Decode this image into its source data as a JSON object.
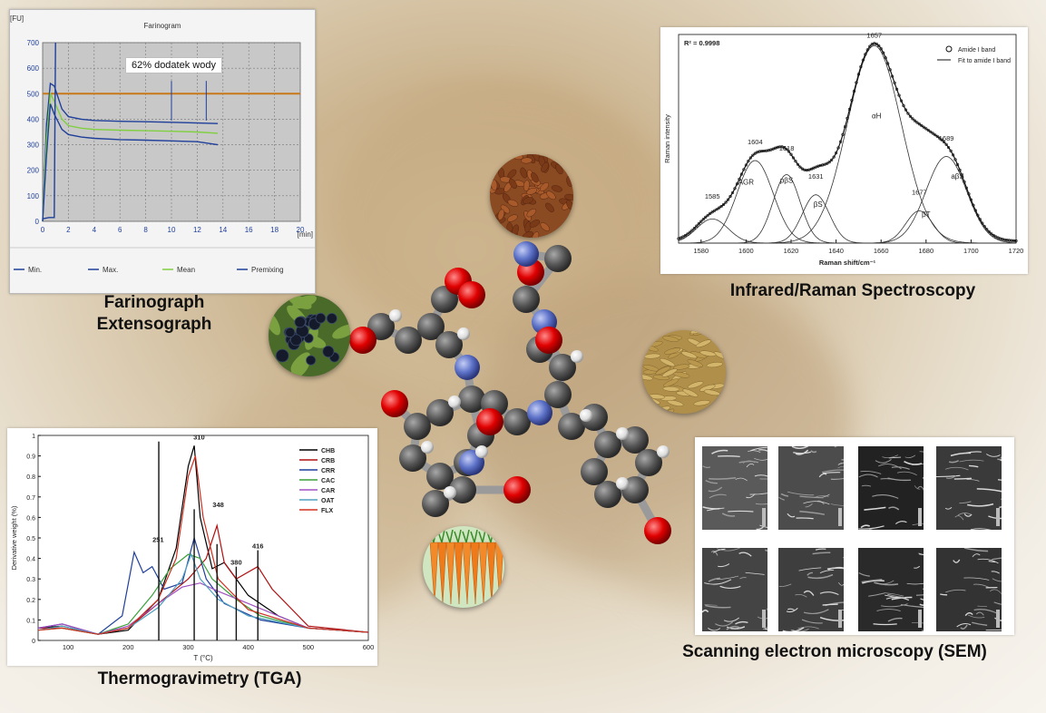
{
  "colors": {
    "background": "#d6c39f",
    "farino_plot": "#c8c8c8",
    "line_blue": "#1f3f9a",
    "line_green": "#7fcf3f",
    "line_orange": "#c87818"
  },
  "farinograph": {
    "title": "Farinogram",
    "y_unit": "[FU]",
    "x_unit": "[min]",
    "annotation": "62% dodatek wody",
    "legend": [
      "Min.",
      "Max.",
      "Mean",
      "Premixing"
    ],
    "caption_line1": "Farinograph",
    "caption_line2": "Extensograph"
  },
  "raman": {
    "r_squared": "R² = 0.9998",
    "legend": [
      "Amide I band",
      "Fit to amide I band"
    ],
    "ylabel": "Raman intensity",
    "xlabel": "Raman shift/cm⁻¹",
    "peaks": [
      "1585",
      "1604",
      "1618",
      "1631",
      "1657",
      "1677",
      "1689"
    ],
    "band_labels": [
      "AGR",
      "pβS",
      "βS",
      "αH",
      "βT",
      "aβS"
    ],
    "caption": "Infrared/Raman Spectroscopy"
  },
  "tga": {
    "ylabel": "Derivative weight (%)",
    "xlabel": "T (°C)",
    "peak_labels": [
      "310",
      "348",
      "251",
      "380",
      "416"
    ],
    "legend": [
      "CHB",
      "CRB",
      "CRR",
      "CAC",
      "CAR",
      "OAT",
      "FLX"
    ],
    "caption": "Thermogravimetry (TGA)"
  },
  "sem": {
    "caption": "Scanning electron microscopy (SEM)"
  },
  "chart_data": [
    {
      "type": "line",
      "title": "Farinogram",
      "xlabel": "[min]",
      "ylabel": "[FU]",
      "xlim": [
        0,
        20
      ],
      "ylim": [
        0,
        700
      ],
      "x_ticks": [
        0,
        2,
        4,
        6,
        8,
        10,
        12,
        14,
        16,
        18,
        20
      ],
      "y_ticks": [
        0,
        100,
        200,
        300,
        400,
        500,
        600,
        700
      ],
      "grid": true,
      "legend_position": "bottom",
      "series": [
        {
          "name": "Max.",
          "x": [
            0,
            0.3,
            0.6,
            0.9,
            1.5,
            2,
            3,
            4,
            6,
            8,
            10,
            12,
            13.6
          ],
          "values": [
            0,
            380,
            540,
            530,
            440,
            410,
            400,
            395,
            392,
            390,
            388,
            385,
            383
          ]
        },
        {
          "name": "Mean",
          "x": [
            0,
            0.3,
            0.6,
            0.9,
            1.5,
            2,
            3,
            4,
            6,
            8,
            10,
            12,
            13.6
          ],
          "values": [
            0,
            320,
            500,
            470,
            400,
            375,
            365,
            360,
            357,
            355,
            353,
            350,
            345
          ]
        },
        {
          "name": "Min.",
          "x": [
            0,
            0.3,
            0.6,
            0.9,
            1.5,
            2,
            3,
            4,
            6,
            8,
            10,
            12,
            13.6
          ],
          "values": [
            0,
            260,
            460,
            420,
            360,
            340,
            330,
            325,
            320,
            318,
            315,
            312,
            300
          ]
        },
        {
          "name": "Premixing",
          "x": [
            0,
            0.5,
            0.9,
            1.0
          ],
          "values": [
            10,
            15,
            15,
            700
          ]
        }
      ],
      "reference_line": 500
    },
    {
      "type": "line",
      "xlabel": "Raman shift/cm⁻¹",
      "ylabel": "Raman intensity",
      "xlim": [
        1570,
        1720
      ],
      "x_ticks": [
        1580,
        1600,
        1620,
        1640,
        1660,
        1680,
        1700,
        1720
      ],
      "legend_position": "top-right",
      "bands": [
        {
          "center": 1585,
          "height": 0.12,
          "width": 7,
          "label": ""
        },
        {
          "center": 1604,
          "height": 0.41,
          "width": 8,
          "label": "AGR"
        },
        {
          "center": 1618,
          "height": 0.34,
          "width": 6,
          "label": "pβS"
        },
        {
          "center": 1631,
          "height": 0.24,
          "width": 6,
          "label": "βS"
        },
        {
          "center": 1657,
          "height": 0.98,
          "width": 12,
          "label": "αH"
        },
        {
          "center": 1677,
          "height": 0.16,
          "width": 6,
          "label": "βT"
        },
        {
          "center": 1689,
          "height": 0.43,
          "width": 9,
          "label": "aβS"
        }
      ]
    },
    {
      "type": "line",
      "xlabel": "T (°C)",
      "ylabel": "Derivative weight (%)",
      "xlim": [
        50,
        600
      ],
      "ylim": [
        0,
        1
      ],
      "x_ticks": [
        100,
        200,
        300,
        400,
        500,
        600
      ],
      "y_ticks": [
        0,
        0.1,
        0.2,
        0.3,
        0.4,
        0.5,
        0.6,
        0.7,
        0.8,
        0.9,
        1
      ],
      "legend_position": "top-right",
      "series": [
        {
          "name": "CHB",
          "color": "#000000",
          "x": [
            50,
            90,
            150,
            200,
            250,
            280,
            300,
            310,
            320,
            340,
            360,
            400,
            450,
            500,
            600
          ],
          "values": [
            0.06,
            0.07,
            0.03,
            0.05,
            0.2,
            0.45,
            0.85,
            0.95,
            0.6,
            0.35,
            0.38,
            0.22,
            0.12,
            0.06,
            0.04
          ]
        },
        {
          "name": "CRB",
          "color": "#b01010",
          "x": [
            50,
            90,
            150,
            200,
            250,
            300,
            330,
            348,
            360,
            380,
            416,
            440,
            500,
            600
          ],
          "values": [
            0.06,
            0.06,
            0.03,
            0.06,
            0.18,
            0.3,
            0.4,
            0.56,
            0.38,
            0.3,
            0.36,
            0.25,
            0.07,
            0.04
          ]
        },
        {
          "name": "CRR",
          "color": "#1f3f9a",
          "x": [
            50,
            90,
            150,
            190,
            210,
            225,
            240,
            260,
            290,
            310,
            330,
            360,
            420,
            500,
            600
          ],
          "values": [
            0.06,
            0.08,
            0.03,
            0.12,
            0.43,
            0.33,
            0.36,
            0.25,
            0.28,
            0.5,
            0.3,
            0.18,
            0.1,
            0.06,
            0.04
          ]
        },
        {
          "name": "CAC",
          "color": "#3aa03a",
          "x": [
            50,
            90,
            150,
            200,
            240,
            270,
            300,
            320,
            340,
            380,
            420,
            500,
            600
          ],
          "values": [
            0.05,
            0.06,
            0.03,
            0.08,
            0.22,
            0.35,
            0.42,
            0.4,
            0.3,
            0.2,
            0.12,
            0.06,
            0.04
          ]
        },
        {
          "name": "CAR",
          "color": "#a050c0",
          "x": [
            50,
            90,
            150,
            200,
            250,
            290,
            320,
            350,
            400,
            450,
            500,
            600
          ],
          "values": [
            0.06,
            0.08,
            0.03,
            0.07,
            0.18,
            0.26,
            0.28,
            0.24,
            0.18,
            0.12,
            0.06,
            0.04
          ]
        },
        {
          "name": "OAT",
          "color": "#50a0c0",
          "x": [
            50,
            90,
            150,
            200,
            250,
            290,
            305,
            320,
            350,
            400,
            500,
            600
          ],
          "values": [
            0.05,
            0.07,
            0.03,
            0.06,
            0.16,
            0.3,
            0.42,
            0.3,
            0.2,
            0.12,
            0.06,
            0.04
          ]
        },
        {
          "name": "FLX",
          "color": "#d03020",
          "x": [
            50,
            90,
            150,
            200,
            250,
            280,
            300,
            312,
            325,
            350,
            400,
            500,
            600
          ],
          "values": [
            0.05,
            0.06,
            0.03,
            0.06,
            0.2,
            0.4,
            0.8,
            0.9,
            0.6,
            0.3,
            0.15,
            0.06,
            0.04
          ]
        }
      ],
      "vlines": [
        251,
        310,
        348,
        380,
        416
      ]
    }
  ]
}
